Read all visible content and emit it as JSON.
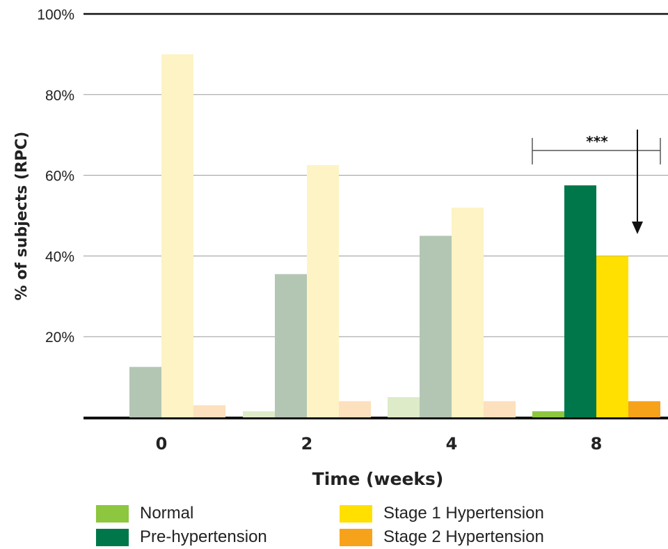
{
  "chart_data": {
    "type": "bar",
    "xlabel": "Time (weeks)",
    "ylabel": "% of subjects (RPC)",
    "ylim": [
      0,
      100
    ],
    "yticks": [
      "100%",
      "80%",
      "60%",
      "40%",
      "20%"
    ],
    "categories": [
      "0",
      "2",
      "4",
      "8"
    ],
    "series": [
      {
        "name": "Normal",
        "values": [
          0,
          1.5,
          5,
          1.5
        ]
      },
      {
        "name": "Pre-hypertension",
        "values": [
          12.5,
          35.5,
          45,
          57.5
        ]
      },
      {
        "name": "Stage 1 Hypertension",
        "values": [
          90,
          62.5,
          52,
          40
        ]
      },
      {
        "name": "Stage 2 Hypertension",
        "values": [
          3,
          4,
          4,
          4
        ]
      }
    ],
    "highlighted_category": "8",
    "annotation": "***",
    "grid": true,
    "legend_position": "bottom"
  },
  "colors": {
    "Normal": "#8dc63f",
    "Pre-hypertension": "#00774a",
    "Stage 1 Hypertension": "#ffe000",
    "Stage 2 Hypertension": "#f7a21b",
    "Normal_faded": "#ddebc8",
    "Pre-hypertension_faded": "#b3c6b4",
    "Stage 1 Hypertension_faded": "#fdf3c4",
    "Stage 2 Hypertension_faded": "#fde0bd"
  }
}
